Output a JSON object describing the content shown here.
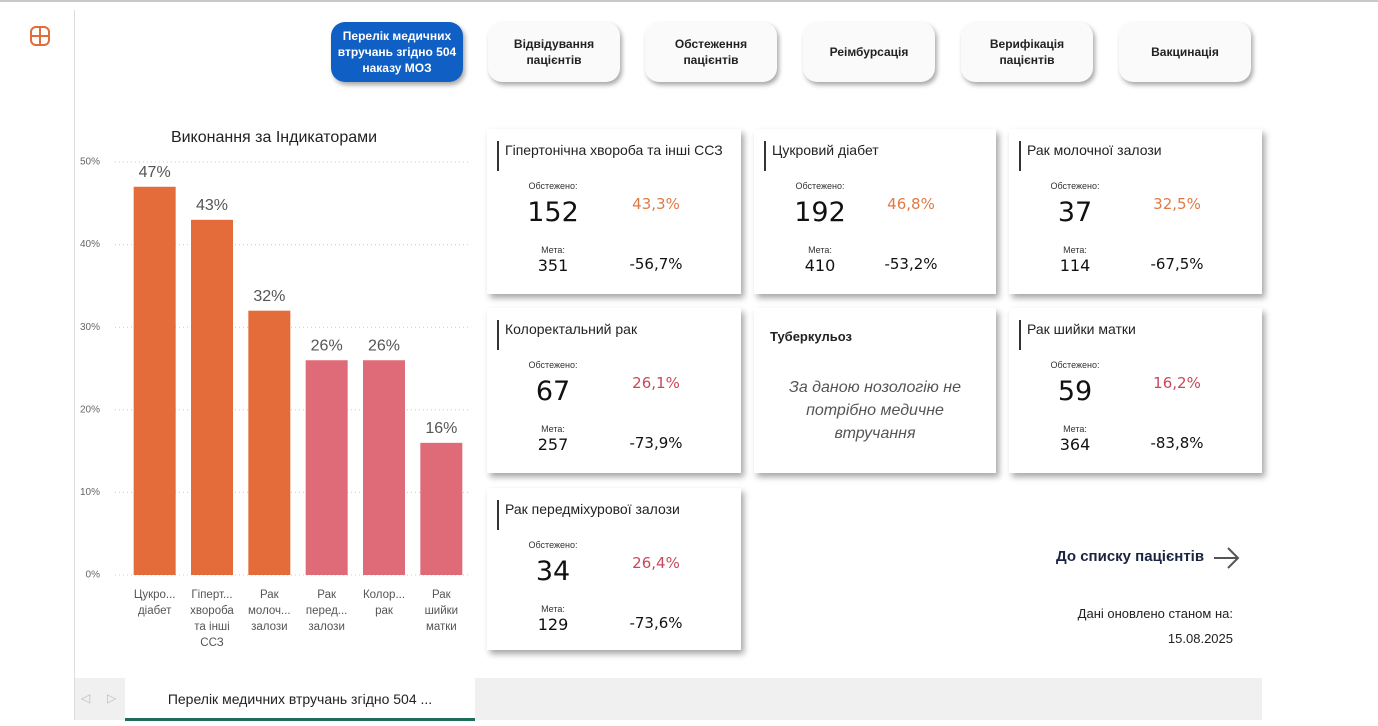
{
  "nav": [
    "Перелік медичних втручань згідно 504 наказу МОЗ",
    "Відвідування пацієнтів",
    "Обстеження пацієнтів",
    "Реімбурсація",
    "Верифікація пацієнтів",
    "Вакцинація"
  ],
  "chart_data": {
    "type": "bar",
    "title": "Виконання за Індикаторами",
    "categories": [
      "Цукро...\nдіабет",
      "Гіперт...\nхвороба\nта інші\nССЗ",
      "Рак\nмолоч...\nзалози",
      "Рак\nперед...\nзалози",
      "Колор...\nрак",
      "Рак\nшийки\nматки"
    ],
    "values": [
      47,
      43,
      32,
      26,
      26,
      16
    ],
    "value_labels": [
      "47%",
      "43%",
      "32%",
      "26%",
      "26%",
      "16%"
    ],
    "colors": [
      "#e46c3a",
      "#e46c3a",
      "#e46c3a",
      "#e06b78",
      "#e06b78",
      "#e06b78"
    ],
    "ylim": [
      0,
      50
    ],
    "yticks": [
      {
        "value": 0,
        "label": "0%"
      },
      {
        "value": 10,
        "label": "10%"
      },
      {
        "value": 20,
        "label": "20%"
      },
      {
        "value": 30,
        "label": "30%"
      },
      {
        "value": 40,
        "label": "40%"
      },
      {
        "value": 50,
        "label": "50%"
      }
    ],
    "grid": true
  },
  "cards": [
    {
      "title": "Гіпертонічна хвороба та інші ССЗ",
      "examined_label": "Обстежено:",
      "examined": "152",
      "goal_label": "Мета:",
      "goal": "351",
      "percent": "43,3%",
      "diff": "-56,7%",
      "color": "#e07a45"
    },
    {
      "title": "Цукровий діабет",
      "examined_label": "Обстежено:",
      "examined": "192",
      "goal_label": "Мета:",
      "goal": "410",
      "percent": "46,8%",
      "diff": "-53,2%",
      "color": "#e07a45"
    },
    {
      "title": "Рак молочної залози",
      "examined_label": "Обстежено:",
      "examined": "37",
      "goal_label": "Мета:",
      "goal": "114",
      "percent": "32,5%",
      "diff": "-67,5%",
      "color": "#e07a45"
    },
    {
      "title": "Колоректальний рак",
      "examined_label": "Обстежено:",
      "examined": "67",
      "goal_label": "Мета:",
      "goal": "257",
      "percent": "26,1%",
      "diff": "-73,9%",
      "color": "#c9485a"
    },
    {
      "title": "Туберкульоз",
      "message": "За даною нозологію не потрібно медичне втручання"
    },
    {
      "title": "Рак шийки матки",
      "examined_label": "Обстежено:",
      "examined": "59",
      "goal_label": "Мета:",
      "goal": "364",
      "percent": "16,2%",
      "diff": "-83,8%",
      "color": "#c9485a"
    },
    {
      "title": "Рак передміхурової залози",
      "examined_label": "Обстежено:",
      "examined": "34",
      "goal_label": "Мета:",
      "goal": "129",
      "percent": "26,4%",
      "diff": "-73,6%",
      "color": "#c9485a"
    }
  ],
  "link": "До списку пацієнтів",
  "updated_label": "Дані оновлено станом на:",
  "updated_date": "15.08.2025",
  "tab": "Перелік медичних втручань згідно 504 ..."
}
